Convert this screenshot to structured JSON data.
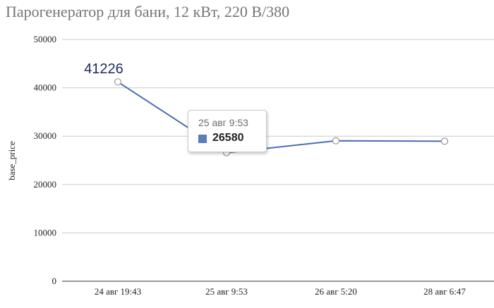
{
  "title": "Парогенератор для бани, 12 кВт, 220 В/380",
  "colors": {
    "line": "#4a6fb0",
    "grid": "#cccccc",
    "axis": "#333333",
    "marker": "#999999",
    "label": "#1b2a5c"
  },
  "chart_data": {
    "type": "line",
    "title": "Парогенератор для бани, 12 кВт, 220 В/380",
    "xlabel": "",
    "ylabel": "base_price",
    "ylim": [
      0,
      50000
    ],
    "yticks": [
      0,
      10000,
      20000,
      30000,
      40000,
      50000
    ],
    "grid": true,
    "categories": [
      "24 авг 19:43",
      "25 авг 9:53",
      "26 авг 5:20",
      "28 авг 6:47"
    ],
    "series": [
      {
        "values": [
          41226,
          26580,
          29050,
          28950
        ]
      }
    ],
    "data_labels": [
      {
        "index": 0,
        "text": "41226"
      }
    ],
    "tooltip": {
      "label": "25 авг 9:53",
      "value": "26580"
    }
  }
}
